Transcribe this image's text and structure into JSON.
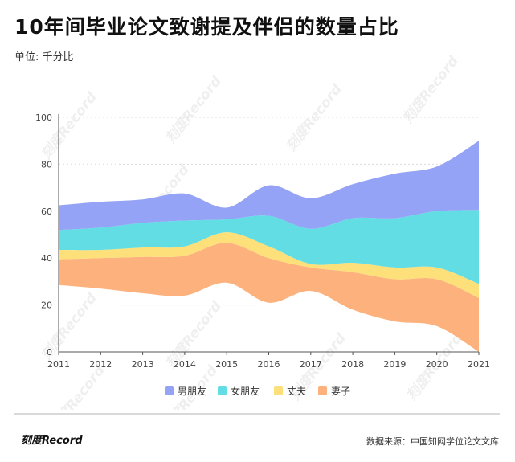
{
  "chart_data": {
    "type": "area",
    "title": "10年间毕业论文致谢提及伴侣的数量占比",
    "subtitle": "单位: 千分比",
    "xlabel": "",
    "ylabel": "",
    "ylim": [
      0,
      100
    ],
    "yticks": [
      0,
      20,
      40,
      60,
      80,
      100
    ],
    "x": [
      2011,
      2012,
      2013,
      2014,
      2015,
      2016,
      2017,
      2018,
      2019,
      2020,
      2021
    ],
    "x_labels": [
      "2011",
      "2012",
      "2013",
      "2014",
      "2015",
      "2016",
      "2017",
      "2018",
      "2019",
      "2020",
      "2021"
    ],
    "series": [
      {
        "name": "妻子",
        "color": "#FDB27E",
        "values": [
          11,
          13,
          15.5,
          17,
          17,
          19,
          10,
          16,
          18,
          20,
          23
        ],
        "baseline": [
          28.5,
          27,
          25,
          24,
          29.5,
          21,
          26,
          18,
          13,
          11,
          0
        ]
      },
      {
        "name": "丈夫",
        "color": "#FDE07A",
        "values": [
          4,
          3.5,
          4,
          4,
          4.5,
          5,
          1.5,
          4,
          5,
          5,
          6
        ]
      },
      {
        "name": "女朋友",
        "color": "#62DDE3",
        "values": [
          8.5,
          9.5,
          10.5,
          11,
          5.5,
          13,
          15,
          19,
          21,
          24,
          31.5
        ]
      },
      {
        "name": "男朋友",
        "color": "#95A3F6",
        "values": [
          10.5,
          11,
          10,
          11.5,
          5,
          13,
          13,
          14.5,
          19,
          19,
          29.5
        ]
      }
    ],
    "legend_position": "bottom-center",
    "grid": "horizontal-dotted"
  },
  "watermark": "刻度Record",
  "footer": {
    "logo": "刻度Record",
    "source": "数据来源：中国知网学位论文文库"
  }
}
